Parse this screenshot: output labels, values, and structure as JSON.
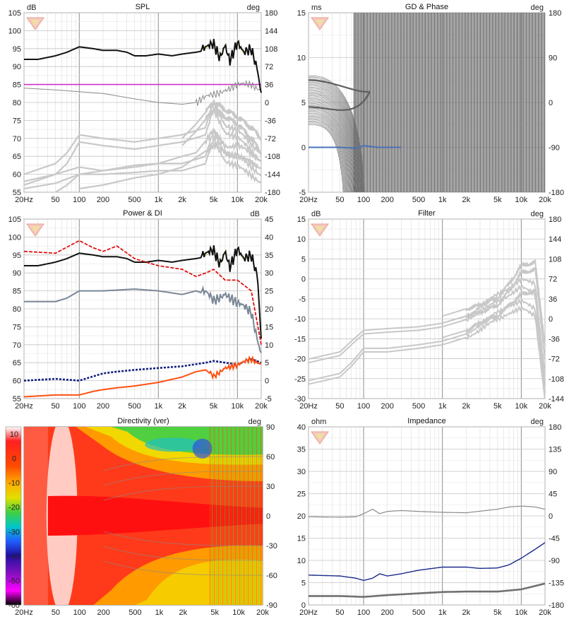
{
  "colors": {
    "black_curve": "#111111",
    "gray_curve": "#8a8a8a",
    "light_curve": "#c8c8c8",
    "purple": "#cc33cc",
    "red_dashed": "#e01010",
    "blue_dotted": "#102080",
    "orange": "#ff5010",
    "slate": "#7a8796",
    "navy": "#1a2a8a",
    "yellow_dotted": "#c8c820"
  },
  "chart_data": [
    {
      "id": "spl",
      "type": "line",
      "title": "SPL",
      "left_unit": "dB",
      "right_unit": "deg",
      "left_ticks": [
        "105",
        "100",
        "95",
        "90",
        "85",
        "80",
        "75",
        "70",
        "65",
        "60",
        "55"
      ],
      "right_ticks": [
        "180",
        "144",
        "108",
        "72",
        "36",
        "0",
        "-36",
        "-72",
        "-108",
        "-144",
        "-180"
      ],
      "x_ticks": [
        "20Hz",
        "50",
        "100",
        "200",
        "500",
        "1k",
        "2k",
        "5k",
        "10k",
        "20k"
      ],
      "xlim": [
        20,
        20000
      ],
      "ylim": [
        55,
        105
      ],
      "series": [
        {
          "role": "main",
          "x": [
            20,
            30,
            50,
            70,
            100,
            150,
            200,
            300,
            400,
            500,
            700,
            1000,
            1500,
            2000,
            3000,
            4000,
            5000,
            6000,
            7000,
            8000,
            10000,
            12000,
            15000,
            18000,
            20000
          ],
          "y": [
            92,
            92,
            93,
            94,
            95.5,
            95,
            94.5,
            94.5,
            94,
            93,
            93,
            93.5,
            93,
            93.5,
            94,
            94.5,
            96,
            93,
            97,
            92,
            96,
            93,
            95,
            90,
            83
          ]
        },
        {
          "role": "purple",
          "x": [
            20,
            20000
          ],
          "y": [
            85,
            85
          ]
        },
        {
          "role": "phase",
          "x": [
            20,
            50,
            100,
            200,
            500,
            1000,
            2000,
            3000,
            5000,
            7000,
            10000,
            15000,
            20000
          ],
          "y": [
            84,
            83.5,
            83,
            82.5,
            81,
            80,
            79.5,
            80,
            82,
            84,
            84.5,
            85,
            84
          ]
        },
        {
          "role": "offaxis",
          "x": [
            20,
            50,
            100,
            200,
            500,
            1000,
            2000,
            4000,
            5000,
            7000,
            10000,
            20000
          ],
          "y": [
            58,
            60,
            62,
            61,
            62.5,
            63,
            63,
            65,
            72,
            66,
            65,
            60
          ]
        },
        {
          "role": "offaxis",
          "x": [
            20,
            50,
            100,
            200,
            500,
            1000,
            2000,
            4000,
            5000,
            7000,
            10000,
            20000
          ],
          "y": [
            56,
            57.5,
            60,
            60,
            60.5,
            61,
            61,
            63,
            70,
            64,
            62,
            58
          ]
        },
        {
          "role": "offaxis",
          "x": [
            20,
            50,
            70,
            100,
            200,
            500,
            1000,
            2000,
            4000,
            5000,
            7000,
            10000,
            20000
          ],
          "y": [
            60,
            63,
            66,
            71,
            70,
            69,
            70,
            71,
            73,
            80,
            74,
            72,
            66
          ]
        },
        {
          "role": "offaxis",
          "x": [
            20,
            50,
            70,
            100,
            200,
            500,
            1000,
            2000,
            4000,
            5000,
            7000,
            10000,
            20000
          ],
          "y": [
            57,
            60,
            63,
            69,
            68,
            67,
            68,
            69,
            71,
            78,
            72,
            70,
            64
          ]
        },
        {
          "role": "offaxis",
          "x": [
            50,
            70,
            100,
            200,
            500,
            1000,
            2000,
            3000,
            5000,
            7000,
            10000,
            20000
          ],
          "y": [
            55,
            57,
            60,
            61,
            62,
            63,
            65,
            66,
            72,
            68,
            68,
            64
          ]
        },
        {
          "role": "offaxis",
          "x": [
            100,
            200,
            500,
            1000,
            2000,
            5000,
            7000,
            10000,
            20000
          ],
          "y": [
            56,
            57,
            59,
            60,
            62,
            68,
            66,
            65,
            62
          ]
        },
        {
          "role": "offaxis",
          "x": [
            2000,
            3000,
            5000,
            7000,
            10000,
            15000,
            20000
          ],
          "y": [
            70,
            74,
            80,
            78,
            76,
            73,
            70
          ]
        },
        {
          "role": "offaxis",
          "x": [
            2000,
            3000,
            5000,
            7000,
            10000,
            15000,
            20000
          ],
          "y": [
            68,
            72,
            78,
            76,
            74,
            70,
            66
          ]
        }
      ]
    },
    {
      "id": "gd",
      "type": "line",
      "title": "GD & Phase",
      "left_unit": "ms",
      "right_unit": "deg",
      "left_ticks": [
        "15",
        "10",
        "5",
        "0",
        "-5"
      ],
      "right_ticks": [
        "180",
        "90",
        "0",
        "-90",
        "-180"
      ],
      "x_ticks": [
        "20Hz",
        "50",
        "100",
        "200",
        "500",
        "1k",
        "2k",
        "5k",
        "10k",
        "20k"
      ],
      "xlim": [
        20,
        20000
      ],
      "ylim": [
        -5,
        15
      ],
      "series": [
        {
          "role": "gd",
          "x": [
            20,
            50,
            80,
            100,
            150,
            200,
            300
          ],
          "y": [
            0,
            0,
            -0.1,
            0.2,
            0,
            0,
            0
          ]
        },
        {
          "role": "fan_top",
          "x": [
            20,
            40,
            60,
            80
          ],
          "y": [
            7.5,
            7.8,
            7.2,
            -5
          ]
        },
        {
          "role": "fan_bottom",
          "x": [
            20,
            30,
            50
          ],
          "y": [
            3.5,
            2,
            -5
          ]
        }
      ]
    },
    {
      "id": "power",
      "type": "line",
      "title": "Power & DI",
      "left_unit": "",
      "right_unit": "dB",
      "left_ticks": [
        "105",
        "100",
        "95",
        "90",
        "85",
        "80",
        "75",
        "70",
        "65",
        "60",
        "55"
      ],
      "right_ticks": [
        "45",
        "40",
        "35",
        "30",
        "25",
        "20",
        "15",
        "10",
        "5",
        "0",
        "-5"
      ],
      "x_ticks": [
        "20Hz",
        "50",
        "100",
        "200",
        "500",
        "1k",
        "2k",
        "5k",
        "10k",
        "20k"
      ],
      "xlim": [
        20,
        20000
      ],
      "ylim": [
        55,
        105
      ],
      "series": [
        {
          "role": "main",
          "x": [
            20,
            30,
            50,
            70,
            100,
            150,
            200,
            300,
            400,
            500,
            700,
            1000,
            1500,
            2000,
            3000,
            4000,
            5000,
            6000,
            7000,
            8000,
            10000,
            12000,
            15000,
            18000,
            20000
          ],
          "y": [
            92,
            92,
            93,
            94,
            95.5,
            95,
            94.5,
            94.5,
            94,
            93,
            93,
            93.5,
            93,
            93.5,
            94,
            94.5,
            96,
            93,
            97,
            92,
            96,
            93,
            95,
            90,
            72
          ]
        },
        {
          "role": "red_dashed",
          "x": [
            20,
            50,
            100,
            150,
            200,
            300,
            500,
            700,
            1000,
            2000,
            3000,
            4000,
            5000,
            7000,
            10000,
            15000,
            20000
          ],
          "y": [
            96,
            95.5,
            99,
            97,
            96,
            97.5,
            94,
            93,
            92,
            91,
            89,
            90,
            91,
            88,
            88,
            85,
            70
          ]
        },
        {
          "role": "slate",
          "x": [
            20,
            50,
            70,
            100,
            200,
            500,
            1000,
            2000,
            3000,
            4000,
            5000,
            7000,
            10000,
            15000,
            20000
          ],
          "y": [
            82,
            82,
            83,
            85,
            85,
            85.5,
            85,
            84,
            85,
            84,
            82,
            85,
            81,
            79,
            68
          ]
        },
        {
          "role": "blue_dotted",
          "x": [
            20,
            50,
            100,
            200,
            300,
            500,
            1000,
            2000,
            4000,
            5000,
            7000,
            10000,
            15000,
            20000
          ],
          "y": [
            60,
            60.5,
            60,
            62,
            62.5,
            63,
            63.5,
            64,
            65,
            65.5,
            65,
            64.5,
            66,
            65
          ]
        },
        {
          "role": "orange",
          "x": [
            20,
            50,
            100,
            150,
            200,
            300,
            500,
            1000,
            2000,
            3000,
            4000,
            5000,
            7000,
            10000,
            15000,
            20000
          ],
          "y": [
            55.5,
            56,
            56,
            57,
            57.5,
            58,
            58.5,
            59.5,
            61,
            62.5,
            63,
            61,
            64,
            64,
            66,
            65
          ]
        }
      ]
    },
    {
      "id": "filter",
      "type": "line",
      "title": "Filter",
      "left_unit": "dB",
      "right_unit": "deg",
      "left_ticks": [
        "15",
        "10",
        "5",
        "0",
        "-5",
        "-10",
        "-15",
        "-20",
        "-25",
        "-30"
      ],
      "right_ticks": [
        "180",
        "144",
        "108",
        "72",
        "36",
        "0",
        "-36",
        "-72",
        "-108",
        "-144"
      ],
      "x_ticks": [
        "20Hz",
        "50",
        "100",
        "200",
        "500",
        "1k",
        "2k",
        "5k",
        "10k",
        "20k"
      ],
      "xlim": [
        20,
        20000
      ],
      "ylim": [
        -35,
        15
      ],
      "series": [
        {
          "role": "light",
          "x": [
            20,
            50,
            70,
            100,
            200,
            500,
            1000,
            2000,
            5000,
            7000,
            10000,
            15000,
            20000
          ],
          "y": [
            -24,
            -22,
            -19,
            -16,
            -15.5,
            -15,
            -14,
            -12,
            -6,
            -4,
            -2,
            -3,
            -30
          ]
        },
        {
          "role": "light",
          "x": [
            20,
            50,
            70,
            100,
            200,
            500,
            1000,
            2000,
            5000,
            7000,
            10000,
            15000,
            20000
          ],
          "y": [
            -25,
            -23,
            -20,
            -17,
            -16.5,
            -16,
            -15,
            -13,
            -8,
            -6,
            -4,
            -6,
            -33
          ]
        },
        {
          "role": "light",
          "x": [
            20,
            50,
            70,
            100,
            200,
            500,
            1000,
            2000,
            5000,
            7000,
            10000,
            15000,
            20000
          ],
          "y": [
            -30,
            -28,
            -25,
            -21,
            -21,
            -20,
            -19,
            -17,
            -11,
            -9,
            -8,
            -10,
            -35
          ]
        },
        {
          "role": "light",
          "x": [
            20,
            50,
            70,
            100,
            200,
            500,
            1000,
            2000,
            5000,
            7000,
            10000,
            15000,
            20000
          ],
          "y": [
            -31,
            -29,
            -26,
            -22,
            -22,
            -21,
            -20,
            -18,
            -13,
            -11,
            -10,
            -12,
            -35
          ]
        },
        {
          "role": "light",
          "x": [
            1000,
            2000,
            3000,
            5000,
            7000,
            10000,
            15000,
            20000
          ],
          "y": [
            -12,
            -10,
            -9,
            -7,
            -3,
            2,
            3,
            -20
          ]
        },
        {
          "role": "light",
          "x": [
            1000,
            2000,
            3000,
            5000,
            7000,
            10000,
            15000,
            20000
          ],
          "y": [
            -14,
            -12,
            -11,
            -9,
            -5,
            0,
            1,
            -24
          ]
        },
        {
          "role": "light",
          "x": [
            1000,
            2000,
            3000,
            5000,
            7000,
            10000,
            15000,
            20000
          ],
          "y": [
            -18,
            -16,
            -14,
            -12,
            -9,
            -6,
            -5,
            -28
          ]
        }
      ]
    },
    {
      "id": "directivity",
      "type": "heatmap",
      "title": "Directivity (ver)",
      "right_unit": "deg",
      "color_ticks": [
        "10",
        "0",
        "-10",
        "-20",
        "-30",
        "-40",
        "-50",
        "-60"
      ],
      "right_ticks": [
        "90",
        "60",
        "30",
        "0",
        "-30",
        "-60",
        "-90"
      ],
      "x_ticks": [
        "20Hz",
        "50",
        "100",
        "200",
        "500",
        "1k",
        "2k",
        "5k",
        "10k",
        "20k"
      ],
      "xlim": [
        20,
        20000
      ],
      "ylim": [
        -90,
        90
      ]
    },
    {
      "id": "impedance",
      "type": "line",
      "title": "Impedance",
      "left_unit": "ohm",
      "right_unit": "deg",
      "left_ticks": [
        "40",
        "35",
        "30",
        "25",
        "20",
        "15",
        "10",
        "5",
        "0"
      ],
      "right_ticks": [
        "180",
        "135",
        "90",
        "45",
        "0",
        "-45",
        "-90",
        "-135",
        "-180"
      ],
      "x_ticks": [
        "20Hz",
        "50",
        "100",
        "200",
        "500",
        "1k",
        "2k",
        "5k",
        "10k",
        "20k"
      ],
      "xlim": [
        20,
        20000
      ],
      "ylim": [
        0,
        40
      ],
      "series": [
        {
          "role": "gray_thin",
          "x": [
            20,
            50,
            80,
            100,
            130,
            160,
            200,
            300,
            500,
            1000,
            2000,
            5000,
            7000,
            10000,
            15000,
            20000
          ],
          "y": [
            19.8,
            19.7,
            19.8,
            20.5,
            21.5,
            20.5,
            21,
            21.2,
            21,
            20.8,
            20.7,
            21.5,
            22,
            22.2,
            22,
            21.5
          ]
        },
        {
          "role": "navy",
          "x": [
            20,
            50,
            80,
            100,
            130,
            160,
            200,
            300,
            500,
            1000,
            2000,
            3000,
            5000,
            7000,
            10000,
            15000,
            20000
          ],
          "y": [
            6.7,
            6.5,
            6,
            5.5,
            6,
            7,
            6.5,
            7,
            7.8,
            8.5,
            8.5,
            8.2,
            8.3,
            9,
            10.5,
            12.5,
            14
          ]
        },
        {
          "role": "gray_thick",
          "x": [
            20,
            50,
            100,
            200,
            500,
            1000,
            2000,
            5000,
            10000,
            20000
          ],
          "y": [
            2,
            2,
            1.8,
            2.2,
            2.6,
            2.9,
            3,
            3,
            3.5,
            4.8
          ]
        }
      ]
    }
  ]
}
